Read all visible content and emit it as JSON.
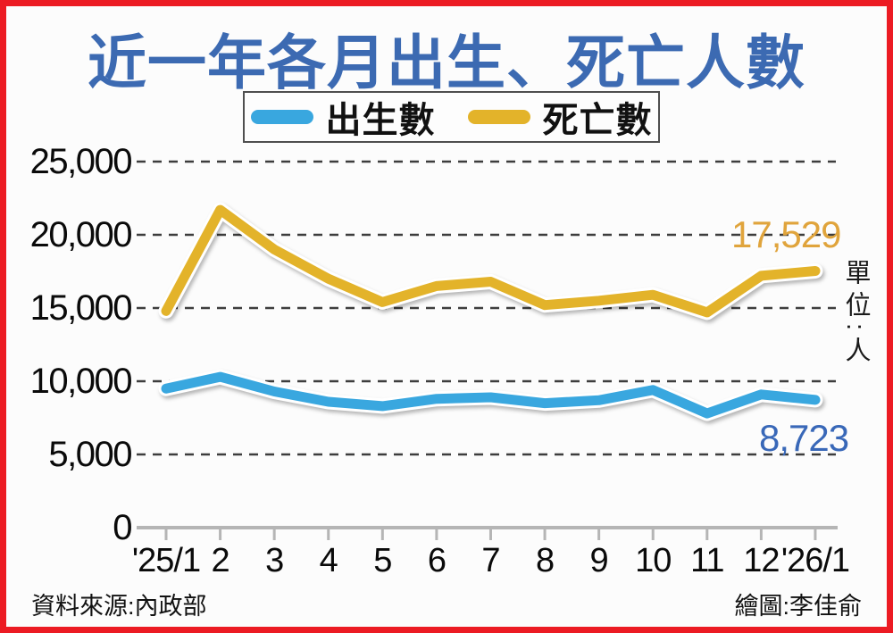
{
  "frame": {
    "border_color": "#EC1B23"
  },
  "title": "近一年各月出生、死亡人數",
  "title_color": "#3C6AB2",
  "unit_label": "單位:人",
  "annotations": {
    "deaths_last": "17,529",
    "births_last": "8,723",
    "deaths_last_color": "#E0A43C",
    "births_last_color": "#3968B8"
  },
  "footer": {
    "source": "資料來源:內政部",
    "credit": "繪圖:李佳俞"
  },
  "chart_data": {
    "type": "line",
    "title": "近一年各月出生、死亡人數",
    "categories": [
      "'25/1",
      "2",
      "3",
      "4",
      "5",
      "6",
      "7",
      "8",
      "9",
      "10",
      "11",
      "12",
      "'26/1"
    ],
    "series": [
      {
        "name": "出生數",
        "color": "#39A7DF",
        "values": [
          9500,
          10300,
          9300,
          8600,
          8300,
          8800,
          8900,
          8500,
          8700,
          9400,
          7800,
          9100,
          8723
        ]
      },
      {
        "name": "死亡數",
        "color": "#E3B32A",
        "values": [
          14800,
          21700,
          19000,
          17000,
          15400,
          16500,
          16800,
          15200,
          15500,
          15900,
          14700,
          17200,
          17529
        ]
      }
    ],
    "ylabel": "單位:人",
    "xlabel": "",
    "ylim": [
      0,
      25000
    ],
    "yticks": [
      0,
      5000,
      10000,
      15000,
      20000,
      25000
    ],
    "ytick_labels": [
      "0",
      "5,000",
      "10,000",
      "15,000",
      "20,000",
      "25,000"
    ],
    "grid": "horizontal-dashed",
    "legend_position": "top-center",
    "last_point_labels": {
      "出生數": "8,723",
      "死亡數": "17,529"
    }
  }
}
